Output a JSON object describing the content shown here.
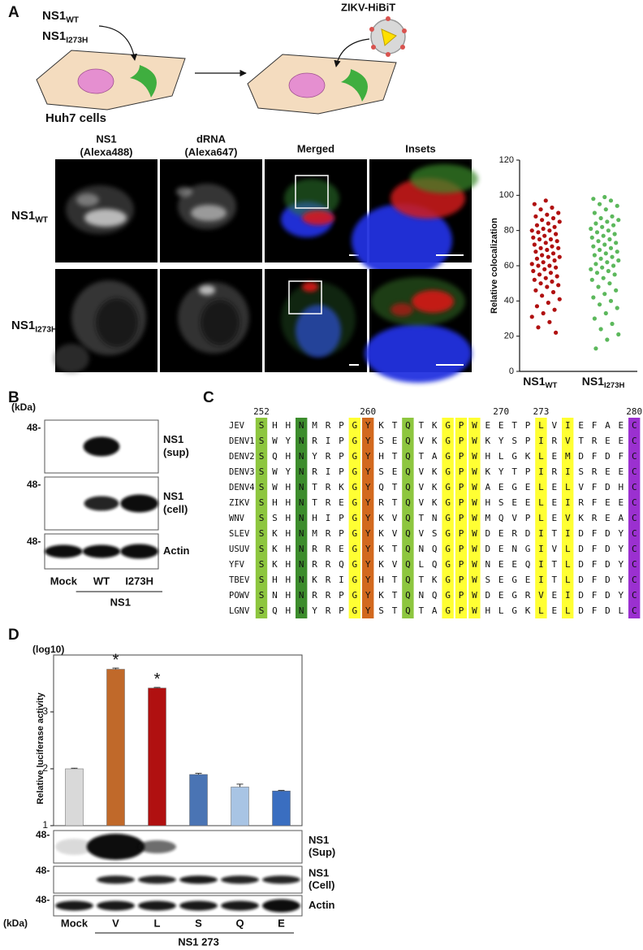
{
  "panel_labels": [
    "A",
    "B",
    "C",
    "D"
  ],
  "schematic": {
    "transfection": [
      {
        "main": "NS1",
        "sub": "WT"
      },
      {
        "main": "NS1",
        "sub": "I273H"
      }
    ],
    "virus": "ZIKV-HiBiT",
    "cells": "Huh7 cells"
  },
  "microscopy": {
    "columns": [
      {
        "lines": [
          "NS1",
          "(Alexa488)"
        ],
        "color": "#3aa53a"
      },
      {
        "lines": [
          "dRNA",
          "(Alexa647)"
        ],
        "color": "#e01010"
      },
      {
        "lines": [
          "Merged"
        ],
        "color": "#111111"
      },
      {
        "lines": [
          "Insets"
        ],
        "color": "#111111"
      }
    ],
    "rows": [
      {
        "main": "NS1",
        "sub": "WT"
      },
      {
        "main": "NS1",
        "sub": "I273H"
      }
    ]
  },
  "chart_data": [
    {
      "type": "strip",
      "ylabel": "Relative colocalization",
      "categories": [
        {
          "main": "NS1",
          "sub": "WT"
        },
        {
          "main": "NS1",
          "sub": "I273H"
        }
      ],
      "series": [
        {
          "color": "#b01010",
          "values": [
            97,
            95,
            93,
            92,
            90,
            89,
            88,
            87,
            86,
            85,
            84,
            83,
            82,
            81,
            80,
            80,
            79,
            78,
            77,
            76,
            75,
            75,
            74,
            73,
            72,
            71,
            70,
            70,
            69,
            68,
            67,
            66,
            65,
            65,
            64,
            63,
            62,
            61,
            60,
            60,
            59,
            58,
            57,
            56,
            55,
            54,
            53,
            52,
            51,
            50,
            49,
            48,
            46,
            45,
            43,
            41,
            39,
            37,
            35,
            33,
            31,
            28,
            25,
            22
          ]
        },
        {
          "color": "#5cb85c",
          "values": [
            99,
            98,
            97,
            95,
            94,
            92,
            90,
            88,
            87,
            86,
            85,
            84,
            83,
            82,
            81,
            80,
            79,
            78,
            77,
            76,
            75,
            74,
            73,
            72,
            71,
            70,
            69,
            68,
            67,
            66,
            65,
            64,
            63,
            62,
            61,
            60,
            59,
            58,
            57,
            56,
            55,
            53,
            52,
            50,
            48,
            46,
            44,
            42,
            40,
            38,
            36,
            33,
            30,
            27,
            24,
            21,
            18,
            13
          ]
        }
      ],
      "ylim": [
        0,
        120
      ],
      "yticks": [
        0,
        20,
        40,
        60,
        80,
        100,
        120
      ]
    },
    {
      "type": "bar",
      "ylabel": "Relative luciferase activity",
      "yunit": "(log10)",
      "categories": [
        "Mock",
        "V",
        "L",
        "S",
        "Q",
        "E"
      ],
      "category_colors": [
        "#111111",
        "#b01010",
        "#b01010",
        "#111111",
        "#111111",
        "#111111"
      ],
      "values": [
        2.0,
        3.75,
        3.42,
        1.9,
        1.68,
        1.61
      ],
      "errors": [
        0.01,
        0.02,
        0.01,
        0.02,
        0.05,
        0.01
      ],
      "colors": [
        "#d9d9d9",
        "#c0692a",
        "#b01010",
        "#4a74b4",
        "#a8c4e4",
        "#3a6ec0"
      ],
      "annotations": [
        null,
        "*",
        "*",
        null,
        null,
        null
      ],
      "group_label": "NS1 273",
      "ylim": [
        1,
        4
      ],
      "yticks": [
        1,
        2,
        3
      ]
    }
  ],
  "blots_B": {
    "kda": "(kDa)",
    "markers": [
      "48-",
      "48-",
      "48-"
    ],
    "rows": [
      {
        "lines": [
          "NS1",
          "(sup)"
        ]
      },
      {
        "lines": [
          "NS1",
          "(cell)"
        ]
      },
      {
        "lines": [
          "Actin"
        ]
      }
    ],
    "lanes": [
      "Mock",
      "WT",
      "I273H"
    ],
    "group": "NS1"
  },
  "blots_D": {
    "kda": "(kDa)",
    "markers": [
      "48-",
      "48-",
      "48-"
    ],
    "rows": [
      {
        "lines": [
          "NS1",
          "(Sup)"
        ]
      },
      {
        "lines": [
          "NS1",
          "(Cell)"
        ]
      },
      {
        "lines": [
          "Actin"
        ]
      }
    ]
  },
  "alignment": {
    "positions": [
      252,
      260,
      270,
      273,
      280
    ],
    "position_colors": [
      "#333333",
      "#333333",
      "#333333",
      "#e02020",
      "#333333"
    ],
    "rows": [
      {
        "name": "JEV",
        "seq": "SHHNMRPGYKTQTKGPWEETPLVIEFAEC"
      },
      {
        "name": "DENV1",
        "seq": "SWYNRIPGYSEQVKGPWKYSPIRVTREEC"
      },
      {
        "name": "DENV2",
        "seq": "SQHNYRPGYHTQTAGPWHLGKLEMDFDFC"
      },
      {
        "name": "DENV3",
        "seq": "SWYNRIPGYSEQVKGPWKYTPIRISREEC"
      },
      {
        "name": "DENV4",
        "seq": "SWHNTRKGYQTQVKGPWAEGELELVFDHC"
      },
      {
        "name": "ZIKV",
        "seq": "SHHNTREGYRTQVKGPWHSEELEIRFEEC"
      },
      {
        "name": "WNV",
        "seq": "SSHNHIPGYKVQTNGPWMQVPLEVKREAC"
      },
      {
        "name": "SLEV",
        "seq": "SKHNMRPGYKVQVSGPWDERDITIDFDYC"
      },
      {
        "name": "USUV",
        "seq": "SKHNRREGYKTQNQGPWDENGIVLDFDYC"
      },
      {
        "name": "YFV",
        "seq": "SKHNRRQGYKVQLQGPWNEEQITLDFDYC"
      },
      {
        "name": "TBEV",
        "seq": "SHHNKRIGYHTQTKGPWSEGEITLDFDYC"
      },
      {
        "name": "POWV",
        "seq": "SNHNRRPGYKTQNQGPWDEGRVEIDFDYC"
      },
      {
        "name": "LGNV",
        "seq": "SQHNYRPGYSTQTAGPWHLGKLELDFDLC"
      }
    ]
  }
}
